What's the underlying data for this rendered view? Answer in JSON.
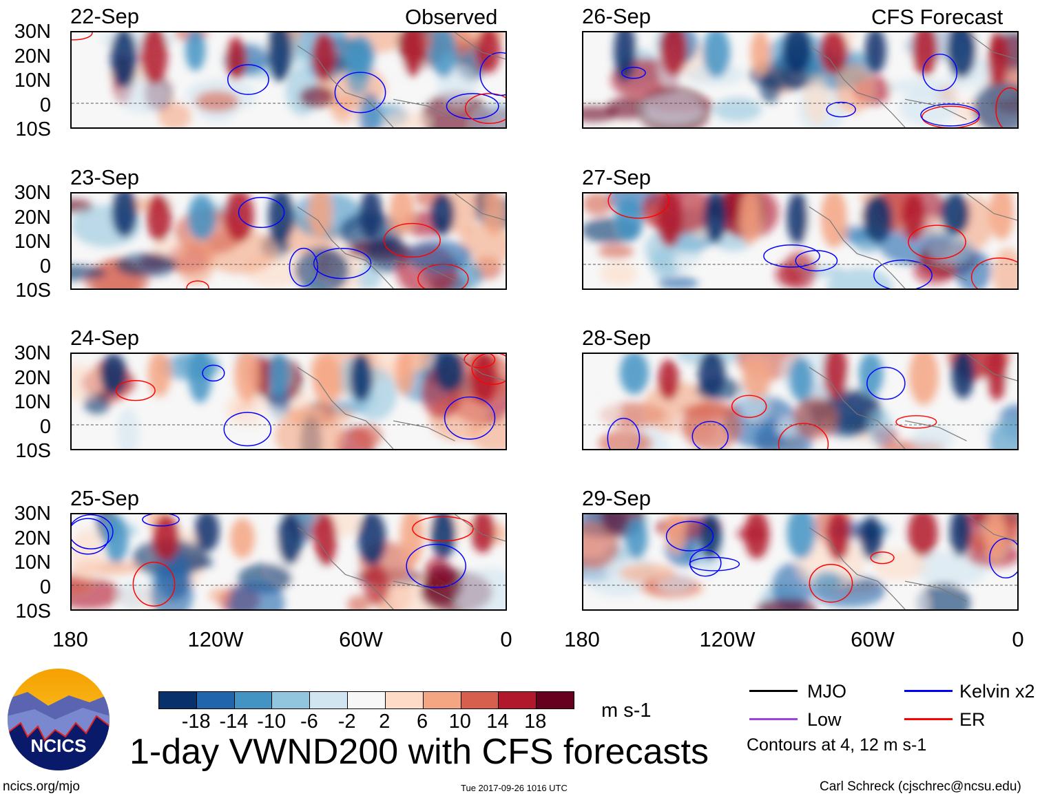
{
  "column_headers": {
    "left": "Observed",
    "right": "CFS Forecast"
  },
  "panels": [
    {
      "date": "22-Sep",
      "column": "left"
    },
    {
      "date": "23-Sep",
      "column": "left"
    },
    {
      "date": "24-Sep",
      "column": "left"
    },
    {
      "date": "25-Sep",
      "column": "left"
    },
    {
      "date": "26-Sep",
      "column": "right"
    },
    {
      "date": "27-Sep",
      "column": "right"
    },
    {
      "date": "28-Sep",
      "column": "right"
    },
    {
      "date": "29-Sep",
      "column": "right"
    }
  ],
  "y_axis_labels": [
    "30N",
    "20N",
    "10N",
    "0",
    "10S"
  ],
  "x_axis_labels": [
    "180",
    "120W",
    "60W",
    "0"
  ],
  "colorbar": {
    "colors": [
      "#08306b",
      "#2166ac",
      "#4393c3",
      "#92c5de",
      "#d1e5f0",
      "#f7f7f7",
      "#fddbc7",
      "#f4a582",
      "#d6604d",
      "#b2182b",
      "#67001f"
    ],
    "labels": [
      "-18",
      "-14",
      "-10",
      "-6",
      "-2",
      "2",
      "6",
      "10",
      "14",
      "18"
    ],
    "units": "m s-1"
  },
  "legend": {
    "items": [
      {
        "label": "MJO",
        "color": "#000000"
      },
      {
        "label": "Kelvin x2",
        "color": "#0000ff"
      },
      {
        "label": "Low",
        "color": "#a040e0"
      },
      {
        "label": "ER",
        "color": "#ff0000"
      }
    ],
    "note": "Contours at 4, 12 m s-1"
  },
  "title": "1-day VWND200 with CFS forecasts",
  "logo": {
    "text": "NCICS"
  },
  "footer": {
    "url": "ncics.org/mjo",
    "timestamp": "Tue 2017-09-26 1016 UTC",
    "author": "Carl Schreck (cjschrec@ncsu.edu)"
  }
}
